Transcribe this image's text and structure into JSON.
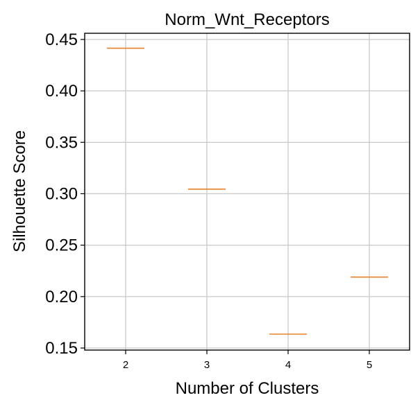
{
  "chart_data": {
    "type": "box",
    "title": "Norm_Wnt_Receptors",
    "xlabel": "Number of Clusters",
    "ylabel": "Silhouette Score",
    "categories": [
      "2",
      "3",
      "4",
      "5"
    ],
    "values": [
      0.4415,
      0.3045,
      0.1635,
      0.219
    ],
    "ylim": [
      0.148,
      0.456
    ],
    "yticks": [
      0.15,
      0.2,
      0.25,
      0.3,
      0.35,
      0.4,
      0.45
    ],
    "ytick_labels": [
      "0.15",
      "0.20",
      "0.25",
      "0.30",
      "0.35",
      "0.40",
      "0.45"
    ],
    "grid": true,
    "median_color": "#e8802a",
    "grid_color": "#cccccc"
  }
}
